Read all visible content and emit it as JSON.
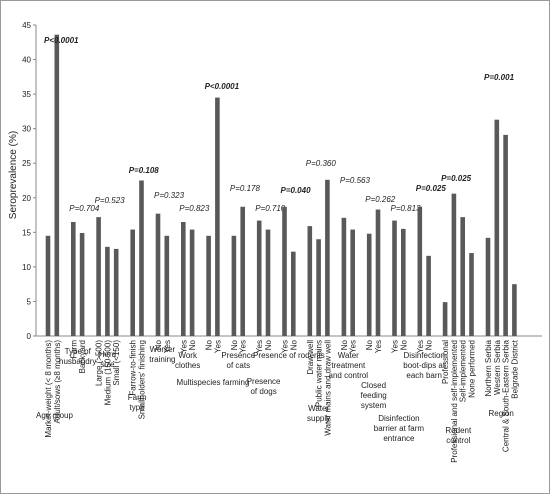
{
  "chart_data": {
    "type": "bar",
    "y_label": "Seroprevalence (%)",
    "ylim": [
      0,
      45
    ],
    "yticks": [
      0,
      5,
      10,
      15,
      20,
      25,
      30,
      35,
      40,
      45
    ],
    "color": "#595959",
    "groups": [
      {
        "label": "Age group",
        "p": "P<0.0001",
        "p_bold": true,
        "categories": [
          "Market-weight (< 8 months)",
          "Adult/sows (≥8 months)"
        ],
        "values": [
          14.5,
          43.6
        ]
      },
      {
        "label": "Type of husbandry",
        "p": "P=0.704",
        "p_bold": false,
        "categories": [
          "Farm",
          "Backyard"
        ],
        "values": [
          16.5,
          14.9
        ]
      },
      {
        "label": "Herd size",
        "p": "P=0.523",
        "p_bold": false,
        "categories": [
          "Large (>500)",
          "Medium (150-500)",
          "Small (<150)"
        ],
        "values": [
          17.2,
          12.9,
          12.6
        ]
      },
      {
        "label": "Farm type",
        "p": "P=0.108",
        "p_bold": true,
        "categories": [
          "Farrow-to-finish",
          "Smallholders' finishing"
        ],
        "values": [
          15.4,
          22.5
        ]
      },
      {
        "label": "Worker training",
        "p": "P=0.323",
        "p_bold": false,
        "categories": [
          "No",
          "Yes"
        ],
        "values": [
          17.7,
          14.5
        ]
      },
      {
        "label": "Work clothes",
        "p": "P=0.823",
        "p_bold": false,
        "categories": [
          "Yes",
          "No"
        ],
        "values": [
          16.5,
          15.4
        ]
      },
      {
        "label": "Multispecies farming",
        "p": "P<0.0001",
        "p_bold": true,
        "categories": [
          "No",
          "Yes"
        ],
        "values": [
          14.5,
          34.5
        ]
      },
      {
        "label": "Presence of cats",
        "p": "P=0.178",
        "p_bold": false,
        "categories": [
          "No",
          "Yes"
        ],
        "values": [
          14.5,
          18.7
        ]
      },
      {
        "label": "Presence of dogs",
        "p": "P=0.710",
        "p_bold": false,
        "categories": [
          "Yes",
          "No"
        ],
        "values": [
          16.7,
          15.4
        ]
      },
      {
        "label": "Presence of rodents",
        "p": "P=0.040",
        "p_bold": true,
        "categories": [
          "Yes",
          "No"
        ],
        "values": [
          18.7,
          12.2
        ]
      },
      {
        "label": "Water supply",
        "p": "P=0.360",
        "p_bold": false,
        "categories": [
          "Draw well",
          "Public water mains",
          "Water mains and draw well"
        ],
        "values": [
          15.9,
          14.0,
          22.6
        ]
      },
      {
        "label": "Water treatment and control",
        "p": "P=0.563",
        "p_bold": false,
        "categories": [
          "No",
          "Yes"
        ],
        "values": [
          17.1,
          15.4
        ]
      },
      {
        "label": "Closed feeding system",
        "p": "P=0.262",
        "p_bold": false,
        "categories": [
          "No",
          "Yes"
        ],
        "values": [
          14.8,
          18.3
        ]
      },
      {
        "label": "Disinfection barrier at farm entrance",
        "p": "P=0.813",
        "p_bold": false,
        "categories": [
          "Yes",
          "No"
        ],
        "values": [
          16.7,
          15.5
        ]
      },
      {
        "label": "Disinfection boot-dips at each barn",
        "p": "P=0.025",
        "p_bold": true,
        "categories": [
          "Yes",
          "No"
        ],
        "values": [
          18.7,
          11.6
        ]
      },
      {
        "label": "Rodent control",
        "p": "P=0.025",
        "p_bold": true,
        "categories": [
          "Professional",
          "Professional and self-implemented",
          "Self-implemented",
          "None performed"
        ],
        "values": [
          4.9,
          20.6,
          17.2,
          12.0
        ]
      },
      {
        "label": "Region",
        "p": "P=0.001",
        "p_bold": true,
        "categories": [
          "Northern Serbia",
          "Western Serbia",
          "Central & South-Eastern Serbia",
          "Belgrade District"
        ],
        "values": [
          14.2,
          31.3,
          29.1,
          7.5
        ]
      }
    ]
  }
}
